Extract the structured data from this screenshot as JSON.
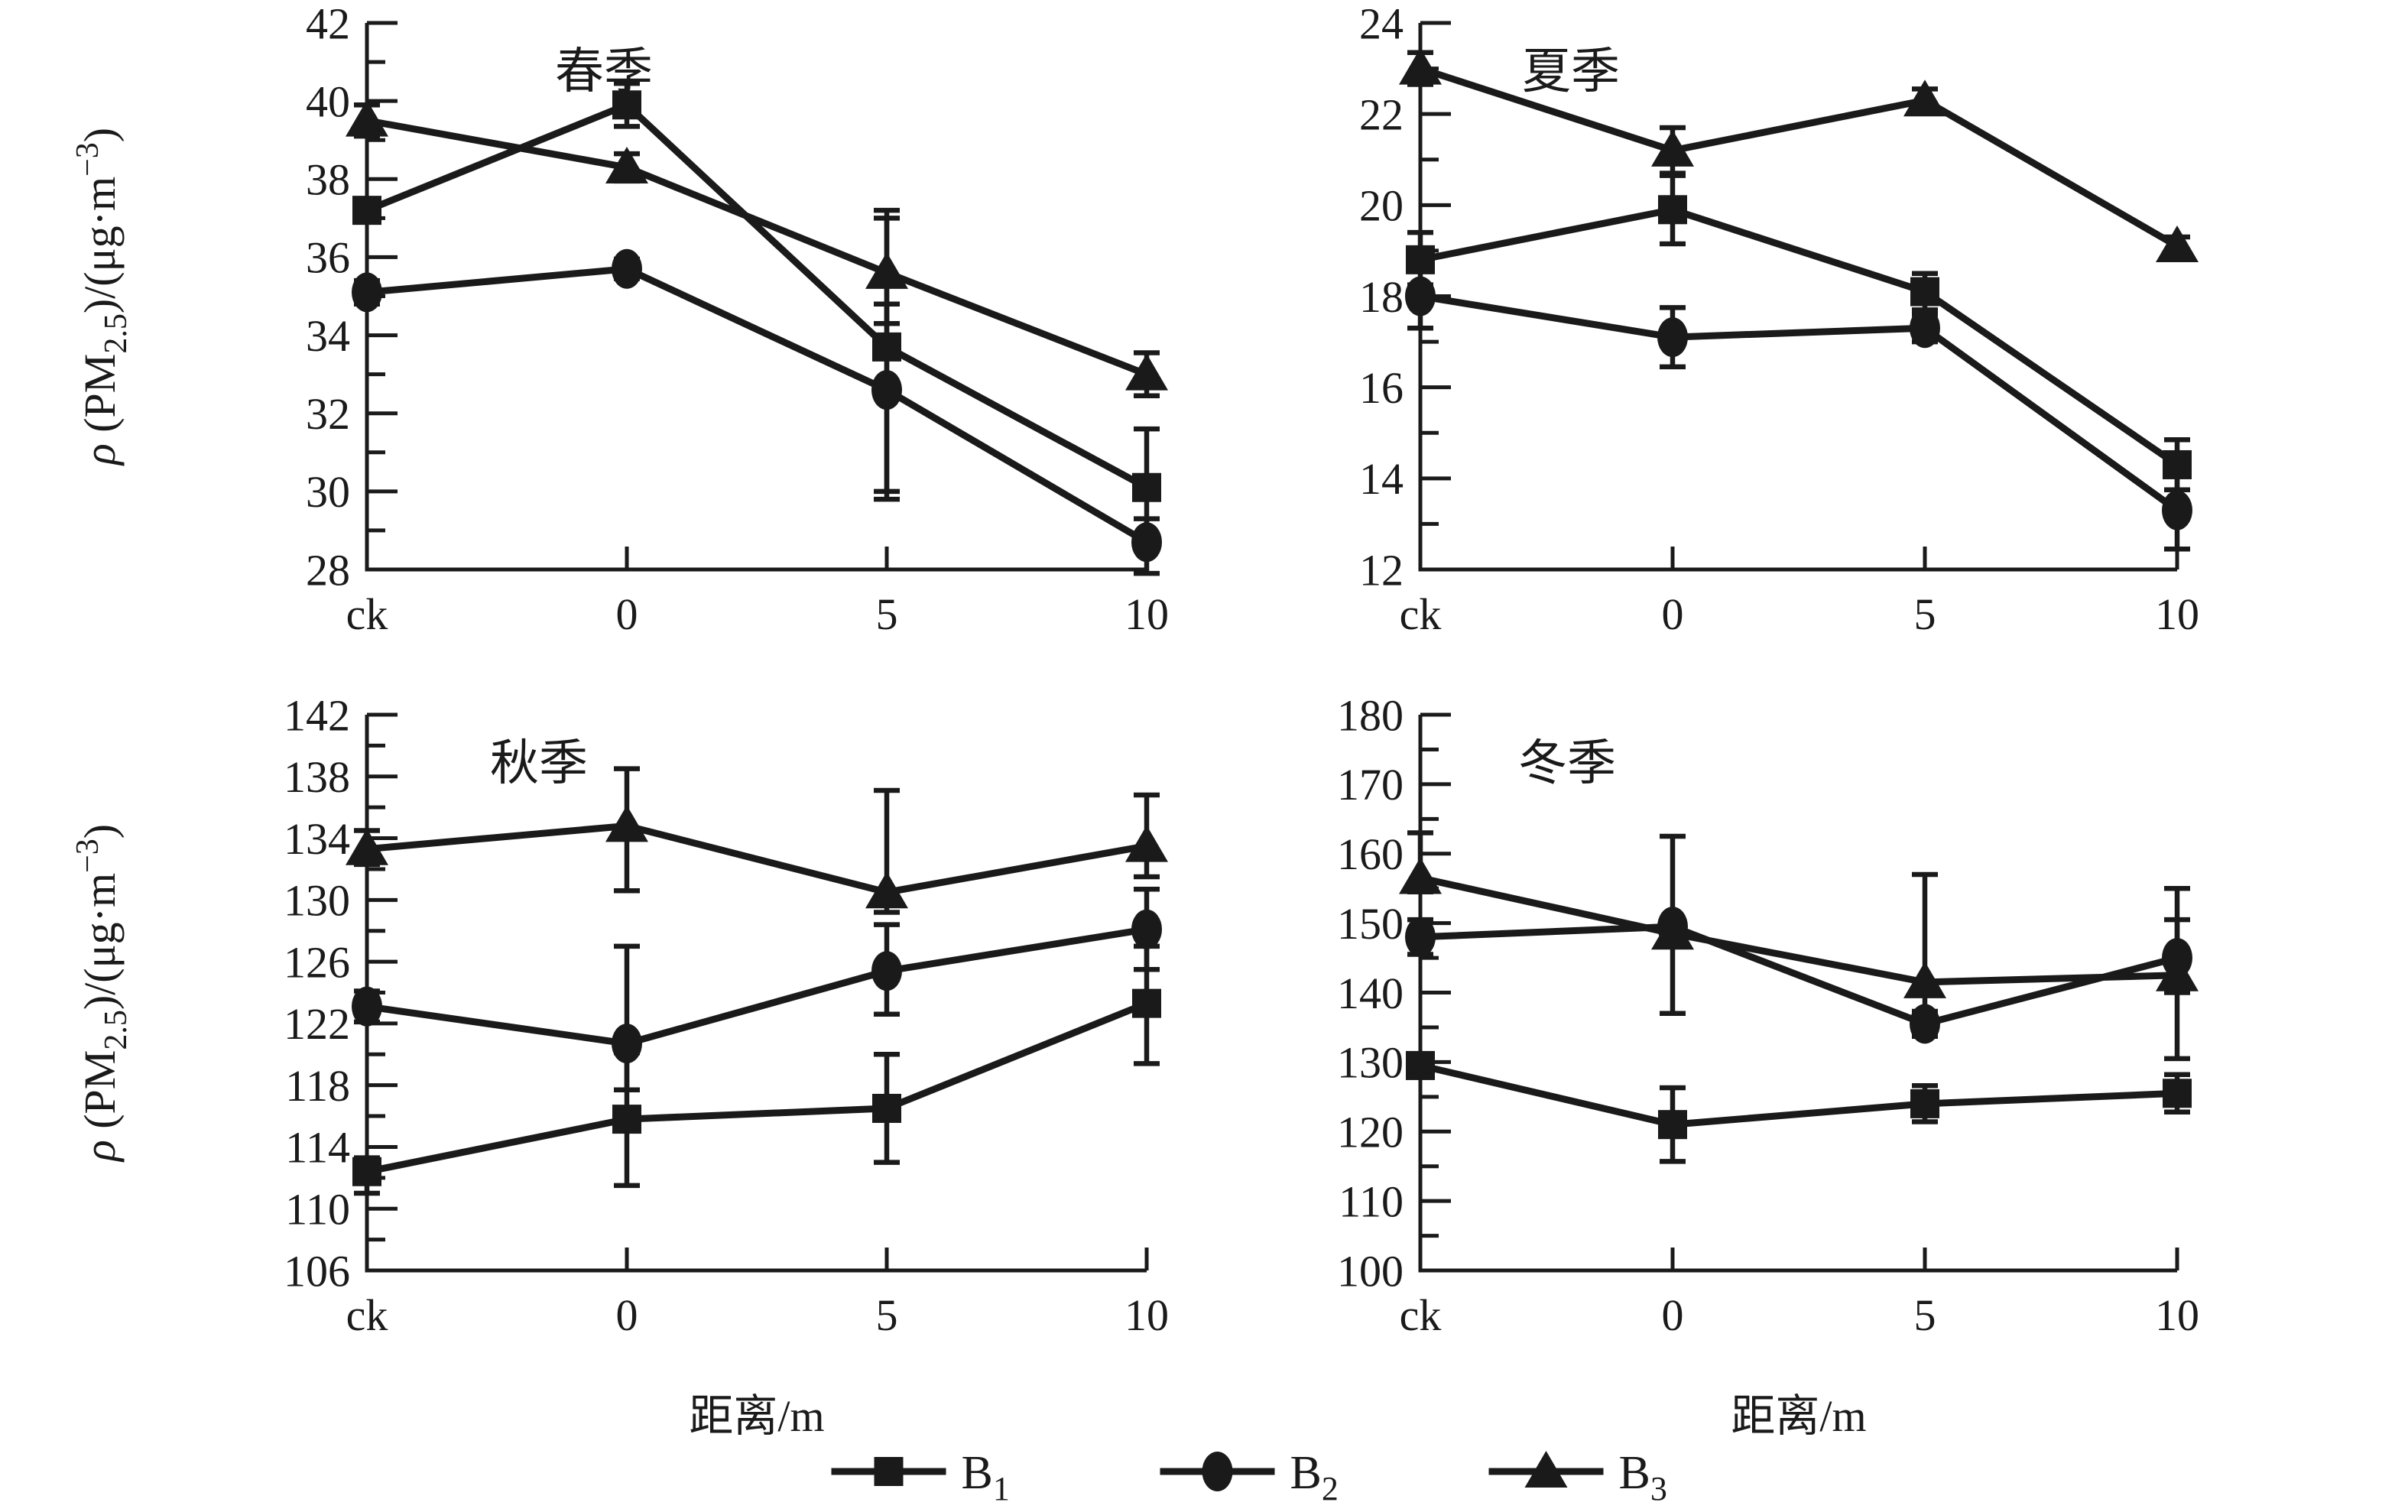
{
  "colors": {
    "ink": "#1a1a1a",
    "background": "#ffffff"
  },
  "axis": {
    "xlabel": "距离/m",
    "categories": [
      "ck",
      "0",
      "5",
      "10"
    ],
    "ylabel_segments": [
      {
        "t": "ρ ",
        "italic": true
      },
      {
        "t": "(PM"
      },
      {
        "t": "2.5",
        "pos": "sub"
      },
      {
        "t": ")/(μg·m"
      },
      {
        "t": "−3",
        "pos": "sup"
      },
      {
        "t": ")"
      }
    ]
  },
  "legend": [
    {
      "base": "B",
      "sub": "1",
      "marker": "square"
    },
    {
      "base": "B",
      "sub": "2",
      "marker": "circle"
    },
    {
      "base": "B",
      "sub": "3",
      "marker": "triangle"
    }
  ],
  "chart_data": [
    {
      "type": "line",
      "name": "spring",
      "title": "春季",
      "ylim": [
        28,
        42
      ],
      "ytick_major": 2,
      "ytick_minor": 1,
      "categories": [
        "ck",
        "0",
        "5",
        "10"
      ],
      "series": [
        {
          "name": "B1",
          "marker": "square",
          "values": [
            37.2,
            39.9,
            33.7,
            30.1
          ],
          "err_up": [
            0.3,
            0.55,
            3.5,
            1.5
          ],
          "err_dn": [
            0.3,
            0.55,
            3.9,
            1.4
          ]
        },
        {
          "name": "B2",
          "marker": "circle",
          "values": [
            35.1,
            35.7,
            32.6,
            28.7
          ],
          "err_up": [
            0.3,
            0.25,
            2.2,
            0.6
          ],
          "err_dn": [
            0.3,
            0.25,
            2.6,
            0.8
          ]
        },
        {
          "name": "B3",
          "marker": "triangle",
          "values": [
            39.5,
            38.3,
            35.6,
            33.0
          ],
          "err_up": [
            0.4,
            0.35,
            1.4,
            0.55
          ],
          "err_dn": [
            0.4,
            0.35,
            1.3,
            0.55
          ]
        }
      ]
    },
    {
      "type": "line",
      "name": "summer",
      "title": "夏季",
      "ylim": [
        12,
        24
      ],
      "ytick_major": 2,
      "ytick_minor": 1,
      "categories": [
        "ck",
        "0",
        "5",
        "10"
      ],
      "series": [
        {
          "name": "B1",
          "marker": "square",
          "values": [
            18.8,
            19.9,
            18.1,
            14.3
          ],
          "err_up": [
            0.6,
            0.75,
            0.4,
            0.55
          ],
          "err_dn": [
            0.6,
            0.75,
            0.4,
            0.55
          ]
        },
        {
          "name": "B2",
          "marker": "circle",
          "values": [
            18.0,
            17.1,
            17.3,
            13.3
          ],
          "err_up": [
            0.25,
            0.65,
            0.3,
            0.85
          ],
          "err_dn": [
            0.7,
            0.65,
            0.3,
            0.85
          ]
        },
        {
          "name": "B3",
          "marker": "triangle",
          "values": [
            23.0,
            21.2,
            22.3,
            19.1
          ],
          "err_up": [
            0.35,
            0.5,
            0.25,
            0.2
          ],
          "err_dn": [
            0.35,
            0.5,
            0.25,
            0.2
          ]
        }
      ]
    },
    {
      "type": "line",
      "name": "autumn",
      "title": "秋季",
      "ylim": [
        106,
        142
      ],
      "ytick_major": 4,
      "ytick_minor": 2,
      "categories": [
        "ck",
        "0",
        "5",
        "10"
      ],
      "series": [
        {
          "name": "B1",
          "marker": "square",
          "values": [
            112.4,
            115.8,
            116.5,
            123.3
          ],
          "err_up": [
            0.9,
            4.3,
            3.5,
            3.7
          ],
          "err_dn": [
            1.4,
            4.3,
            3.5,
            3.9
          ]
        },
        {
          "name": "B2",
          "marker": "circle",
          "values": [
            123.1,
            120.7,
            125.4,
            128.1
          ],
          "err_up": [
            1.0,
            6.3,
            3.0,
            2.6
          ],
          "err_dn": [
            1.0,
            3.0,
            2.8,
            2.6
          ]
        },
        {
          "name": "B3",
          "marker": "triangle",
          "values": [
            133.3,
            134.8,
            130.5,
            133.5
          ],
          "err_up": [
            1.2,
            3.7,
            6.6,
            3.3
          ],
          "err_dn": [
            1.0,
            4.2,
            1.3,
            2.0
          ]
        }
      ]
    },
    {
      "type": "line",
      "name": "winter",
      "title": "冬季",
      "ylim": [
        100,
        180
      ],
      "ytick_major": 10,
      "ytick_minor": 5,
      "categories": [
        "ck",
        "0",
        "5",
        "10"
      ],
      "series": [
        {
          "name": "B1",
          "marker": "square",
          "values": [
            129.5,
            121.0,
            124.0,
            125.5
          ],
          "err_up": [
            1.2,
            5.3,
            2.6,
            2.7
          ],
          "err_dn": [
            1.2,
            5.3,
            2.6,
            2.7
          ]
        },
        {
          "name": "B2",
          "marker": "circle",
          "values": [
            148.0,
            149.5,
            135.5,
            145.0
          ],
          "err_up": [
            2.5,
            13.0,
            1.8,
            10.0
          ],
          "err_dn": [
            2.5,
            12.5,
            1.8,
            5.0
          ]
        },
        {
          "name": "B3",
          "marker": "triangle",
          "values": [
            156.5,
            148.5,
            141.5,
            142.5
          ],
          "err_up": [
            6.5,
            1.5,
            15.5,
            8.0
          ],
          "err_dn": [
            2.0,
            1.5,
            5.0,
            12.0
          ]
        }
      ]
    }
  ]
}
